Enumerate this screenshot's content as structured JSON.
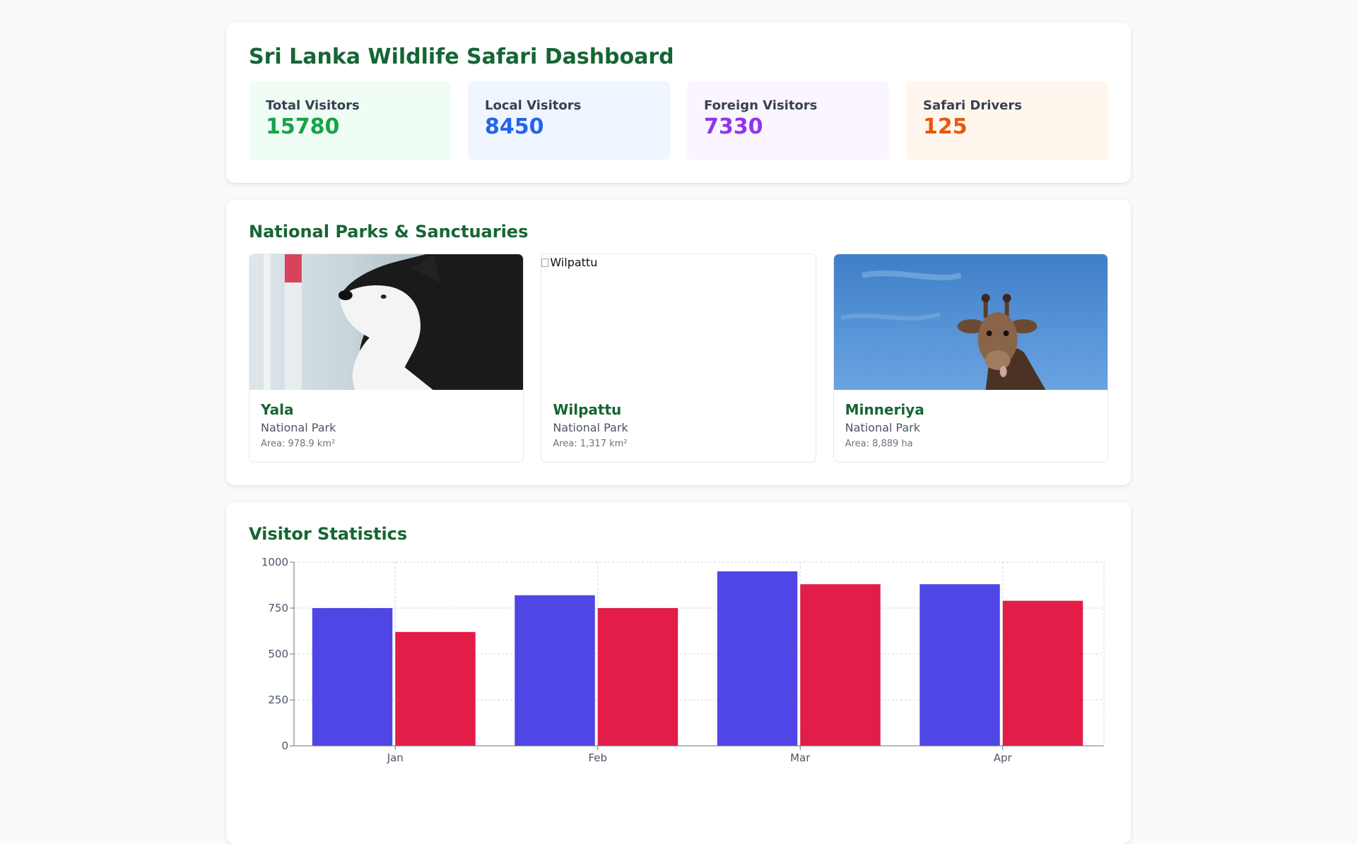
{
  "header": {
    "title": "Sri Lanka Wildlife Safari Dashboard"
  },
  "stats": [
    {
      "label": "Total Visitors",
      "value": "15780",
      "color": "#16a34a"
    },
    {
      "label": "Local Visitors",
      "value": "8450",
      "color": "#2563eb"
    },
    {
      "label": "Foreign Visitors",
      "value": "7330",
      "color": "#9333ea"
    },
    {
      "label": "Safari Drivers",
      "value": "125",
      "color": "#ea580c"
    }
  ],
  "parks": {
    "title": "National Parks & Sanctuaries",
    "items": [
      {
        "name": "Yala",
        "type": "National Park",
        "area": "Area: 978.9 km²",
        "icon": "husky-photo"
      },
      {
        "name": "Wilpattu",
        "type": "National Park",
        "area": "Area: 1,317 km²",
        "image_alt": "Wilpattu",
        "icon": "broken-image-icon"
      },
      {
        "name": "Minneriya",
        "type": "National Park",
        "area": "Area: 8,889 ha",
        "icon": "giraffe-photo"
      }
    ]
  },
  "visitor_stats": {
    "title": "Visitor Statistics"
  },
  "chart_data": {
    "type": "bar",
    "categories": [
      "Jan",
      "Feb",
      "Mar",
      "Apr"
    ],
    "series": [
      {
        "values": [
          750,
          820,
          950,
          880
        ],
        "color": "#4f46e5"
      },
      {
        "values": [
          620,
          750,
          880,
          790
        ],
        "color": "#e11d48"
      }
    ],
    "ylim": [
      0,
      1000
    ],
    "yticks": [
      0,
      250,
      500,
      750,
      1000
    ],
    "grid": true
  }
}
